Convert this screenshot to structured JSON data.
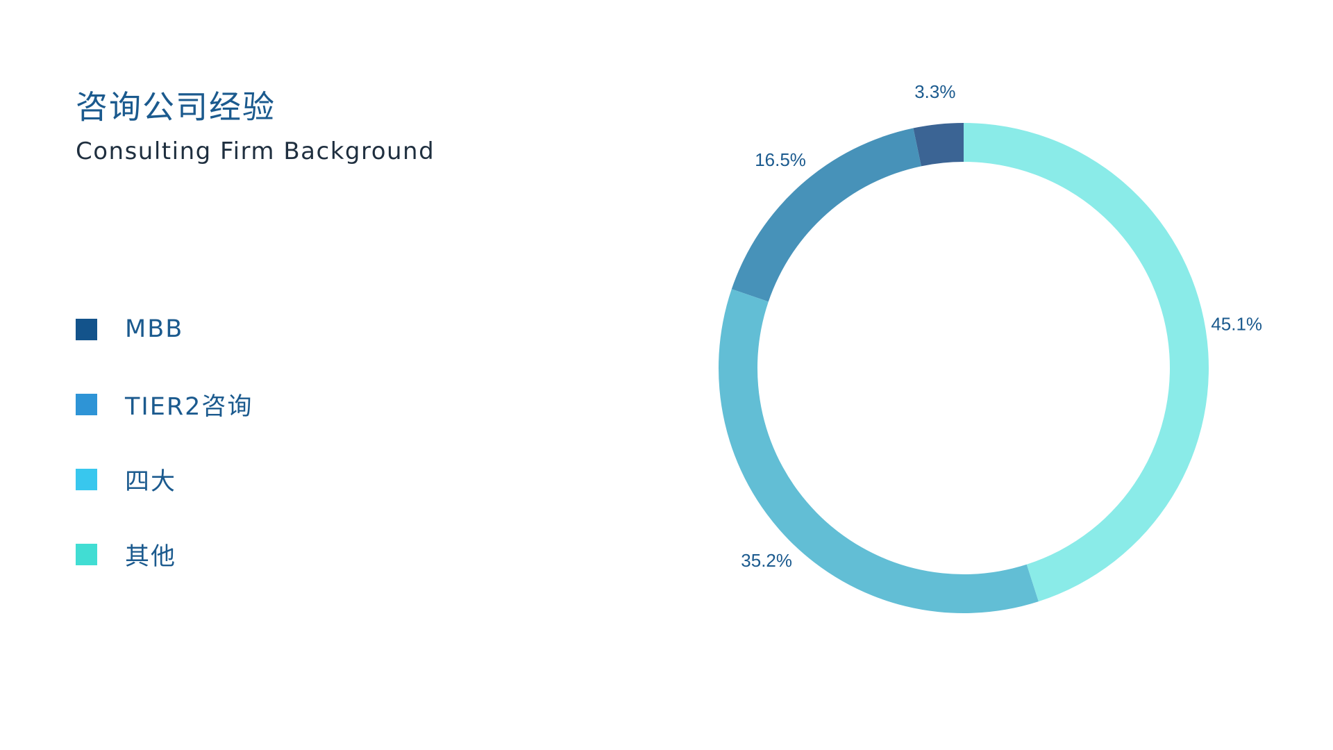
{
  "header": {
    "title": "咨询公司经验",
    "subtitle": "Consulting Firm Background"
  },
  "legend": {
    "items": [
      {
        "label": "MBB",
        "color": "#13538b"
      },
      {
        "label": "TIER2咨询",
        "color": "#2e94d6"
      },
      {
        "label": "四大",
        "color": "#38c7ee"
      },
      {
        "label": "其他",
        "color": "#41ddd3"
      }
    ]
  },
  "chart_data": {
    "type": "pie",
    "donut": true,
    "start": "top",
    "direction": "counterclockwise",
    "title": "咨询公司经验",
    "subtitle": "Consulting Firm Background",
    "legend_position": "left",
    "slices": [
      {
        "category": "MBB",
        "value": 3.3,
        "label": "3.3%",
        "color": "#3b6494"
      },
      {
        "category": "TIER2咨询",
        "value": 16.5,
        "label": "16.5%",
        "color": "#4792b9"
      },
      {
        "category": "四大",
        "value": 35.2,
        "label": "35.2%",
        "color": "#62bed5"
      },
      {
        "category": "其他",
        "value": 45.1,
        "label": "45.1%",
        "color": "#8aebe8"
      }
    ]
  }
}
